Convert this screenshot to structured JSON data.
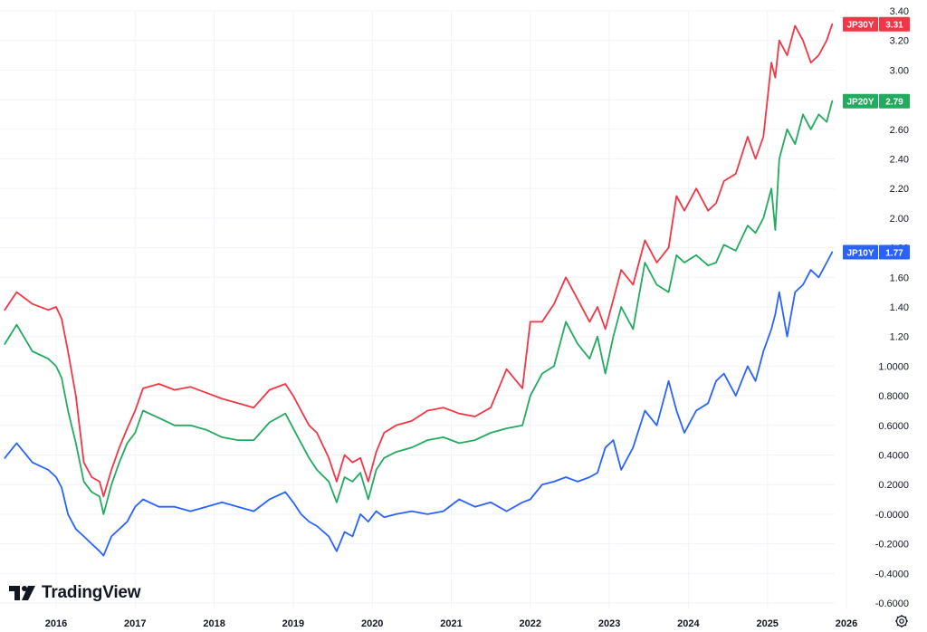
{
  "branding": {
    "name": "TradingView"
  },
  "chart_data": {
    "type": "line",
    "ylim": [
      -0.6,
      3.4
    ],
    "xlim": [
      2015.35,
      2026.2
    ],
    "y_ticks": [
      "3.40",
      "3.20",
      "3.00",
      "2.80",
      "2.60",
      "2.40",
      "2.20",
      "2.00",
      "1.80",
      "1.60",
      "1.40",
      "1.20",
      "1.0000",
      "0.8000",
      "0.6000",
      "0.4000",
      "0.2000",
      "-0.0000",
      "-0.2000",
      "-0.4000",
      "-0.6000"
    ],
    "x_ticks": [
      "2016",
      "2017",
      "2018",
      "2019",
      "2020",
      "2021",
      "2022",
      "2023",
      "2024",
      "2025",
      "2026"
    ],
    "grid": true,
    "series": [
      {
        "name": "JP30Y",
        "last": "3.31",
        "color": "#f23645",
        "x": [
          2015.35,
          2015.5,
          2015.7,
          2015.9,
          2016.0,
          2016.07,
          2016.15,
          2016.25,
          2016.35,
          2016.45,
          2016.55,
          2016.6,
          2016.7,
          2016.8,
          2016.9,
          2017.0,
          2017.1,
          2017.3,
          2017.5,
          2017.7,
          2017.9,
          2018.1,
          2018.3,
          2018.5,
          2018.7,
          2018.9,
          2019.0,
          2019.1,
          2019.2,
          2019.3,
          2019.45,
          2019.55,
          2019.65,
          2019.75,
          2019.85,
          2019.95,
          2020.05,
          2020.15,
          2020.3,
          2020.5,
          2020.7,
          2020.9,
          2021.1,
          2021.3,
          2021.5,
          2021.7,
          2021.9,
          2022.0,
          2022.15,
          2022.3,
          2022.45,
          2022.6,
          2022.75,
          2022.85,
          2022.95,
          2023.05,
          2023.15,
          2023.3,
          2023.45,
          2023.6,
          2023.75,
          2023.85,
          2023.95,
          2024.1,
          2024.25,
          2024.35,
          2024.45,
          2024.6,
          2024.75,
          2024.85,
          2024.95,
          2025.05,
          2025.1,
          2025.15,
          2025.25,
          2025.35,
          2025.45,
          2025.55,
          2025.65,
          2025.75,
          2025.82
        ],
        "y": [
          1.38,
          1.5,
          1.42,
          1.38,
          1.4,
          1.32,
          1.1,
          0.8,
          0.35,
          0.25,
          0.22,
          0.12,
          0.3,
          0.45,
          0.58,
          0.7,
          0.85,
          0.88,
          0.84,
          0.86,
          0.82,
          0.78,
          0.75,
          0.72,
          0.84,
          0.88,
          0.8,
          0.7,
          0.6,
          0.55,
          0.38,
          0.22,
          0.4,
          0.35,
          0.38,
          0.22,
          0.42,
          0.55,
          0.6,
          0.63,
          0.7,
          0.72,
          0.68,
          0.66,
          0.72,
          0.98,
          0.85,
          1.3,
          1.3,
          1.42,
          1.6,
          1.45,
          1.3,
          1.4,
          1.25,
          1.45,
          1.65,
          1.55,
          1.85,
          1.7,
          1.8,
          2.15,
          2.05,
          2.2,
          2.05,
          2.1,
          2.25,
          2.3,
          2.55,
          2.4,
          2.55,
          3.05,
          2.95,
          3.2,
          3.1,
          3.3,
          3.2,
          3.05,
          3.1,
          3.2,
          3.31
        ]
      },
      {
        "name": "JP20Y",
        "last": "2.79",
        "color": "#22ab5e",
        "x": [
          2015.35,
          2015.5,
          2015.7,
          2015.9,
          2016.0,
          2016.07,
          2016.15,
          2016.25,
          2016.35,
          2016.45,
          2016.55,
          2016.6,
          2016.7,
          2016.8,
          2016.9,
          2017.0,
          2017.1,
          2017.3,
          2017.5,
          2017.7,
          2017.9,
          2018.1,
          2018.3,
          2018.5,
          2018.7,
          2018.9,
          2019.0,
          2019.1,
          2019.2,
          2019.3,
          2019.45,
          2019.55,
          2019.65,
          2019.75,
          2019.85,
          2019.95,
          2020.05,
          2020.15,
          2020.3,
          2020.5,
          2020.7,
          2020.9,
          2021.1,
          2021.3,
          2021.5,
          2021.7,
          2021.9,
          2022.0,
          2022.15,
          2022.3,
          2022.45,
          2022.6,
          2022.75,
          2022.85,
          2022.95,
          2023.05,
          2023.15,
          2023.3,
          2023.45,
          2023.6,
          2023.75,
          2023.85,
          2023.95,
          2024.1,
          2024.25,
          2024.35,
          2024.45,
          2024.6,
          2024.75,
          2024.85,
          2024.95,
          2025.05,
          2025.1,
          2025.15,
          2025.25,
          2025.35,
          2025.45,
          2025.55,
          2025.65,
          2025.75,
          2025.82
        ],
        "y": [
          1.15,
          1.28,
          1.1,
          1.05,
          1.0,
          0.92,
          0.7,
          0.48,
          0.22,
          0.15,
          0.12,
          0.0,
          0.2,
          0.35,
          0.48,
          0.55,
          0.7,
          0.65,
          0.6,
          0.6,
          0.57,
          0.52,
          0.5,
          0.5,
          0.62,
          0.68,
          0.58,
          0.48,
          0.38,
          0.3,
          0.22,
          0.08,
          0.25,
          0.22,
          0.28,
          0.1,
          0.3,
          0.38,
          0.42,
          0.45,
          0.5,
          0.52,
          0.48,
          0.5,
          0.55,
          0.58,
          0.6,
          0.8,
          0.95,
          1.0,
          1.3,
          1.15,
          1.05,
          1.2,
          0.95,
          1.2,
          1.4,
          1.25,
          1.7,
          1.55,
          1.5,
          1.75,
          1.7,
          1.75,
          1.68,
          1.7,
          1.82,
          1.78,
          1.95,
          1.9,
          2.0,
          2.2,
          1.92,
          2.4,
          2.6,
          2.5,
          2.7,
          2.6,
          2.7,
          2.65,
          2.79
        ]
      },
      {
        "name": "JP10Y",
        "last": "1.77",
        "color": "#2962ff",
        "x": [
          2015.35,
          2015.5,
          2015.7,
          2015.9,
          2016.0,
          2016.07,
          2016.15,
          2016.25,
          2016.35,
          2016.45,
          2016.55,
          2016.6,
          2016.7,
          2016.8,
          2016.9,
          2017.0,
          2017.1,
          2017.3,
          2017.5,
          2017.7,
          2017.9,
          2018.1,
          2018.3,
          2018.5,
          2018.7,
          2018.9,
          2019.0,
          2019.1,
          2019.2,
          2019.3,
          2019.45,
          2019.55,
          2019.65,
          2019.75,
          2019.85,
          2019.95,
          2020.05,
          2020.15,
          2020.3,
          2020.5,
          2020.7,
          2020.9,
          2021.1,
          2021.3,
          2021.5,
          2021.7,
          2021.9,
          2022.0,
          2022.15,
          2022.3,
          2022.45,
          2022.6,
          2022.75,
          2022.85,
          2022.95,
          2023.05,
          2023.15,
          2023.3,
          2023.45,
          2023.6,
          2023.75,
          2023.85,
          2023.95,
          2024.1,
          2024.25,
          2024.35,
          2024.45,
          2024.6,
          2024.75,
          2024.85,
          2024.95,
          2025.05,
          2025.1,
          2025.15,
          2025.25,
          2025.35,
          2025.45,
          2025.55,
          2025.65,
          2025.75,
          2025.82
        ],
        "y": [
          0.38,
          0.48,
          0.35,
          0.3,
          0.25,
          0.18,
          0.0,
          -0.1,
          -0.15,
          -0.2,
          -0.25,
          -0.28,
          -0.15,
          -0.1,
          -0.05,
          0.05,
          0.1,
          0.05,
          0.05,
          0.02,
          0.05,
          0.08,
          0.05,
          0.02,
          0.1,
          0.15,
          0.08,
          0.0,
          -0.05,
          -0.08,
          -0.15,
          -0.25,
          -0.12,
          -0.15,
          0.0,
          -0.05,
          0.02,
          -0.02,
          0.0,
          0.02,
          0.0,
          0.02,
          0.1,
          0.05,
          0.08,
          0.02,
          0.08,
          0.1,
          0.2,
          0.22,
          0.25,
          0.22,
          0.25,
          0.28,
          0.45,
          0.5,
          0.3,
          0.45,
          0.7,
          0.6,
          0.9,
          0.7,
          0.55,
          0.7,
          0.75,
          0.9,
          0.95,
          0.8,
          1.0,
          0.9,
          1.1,
          1.25,
          1.35,
          1.5,
          1.2,
          1.5,
          1.55,
          1.65,
          1.6,
          1.7,
          1.77
        ]
      }
    ]
  }
}
